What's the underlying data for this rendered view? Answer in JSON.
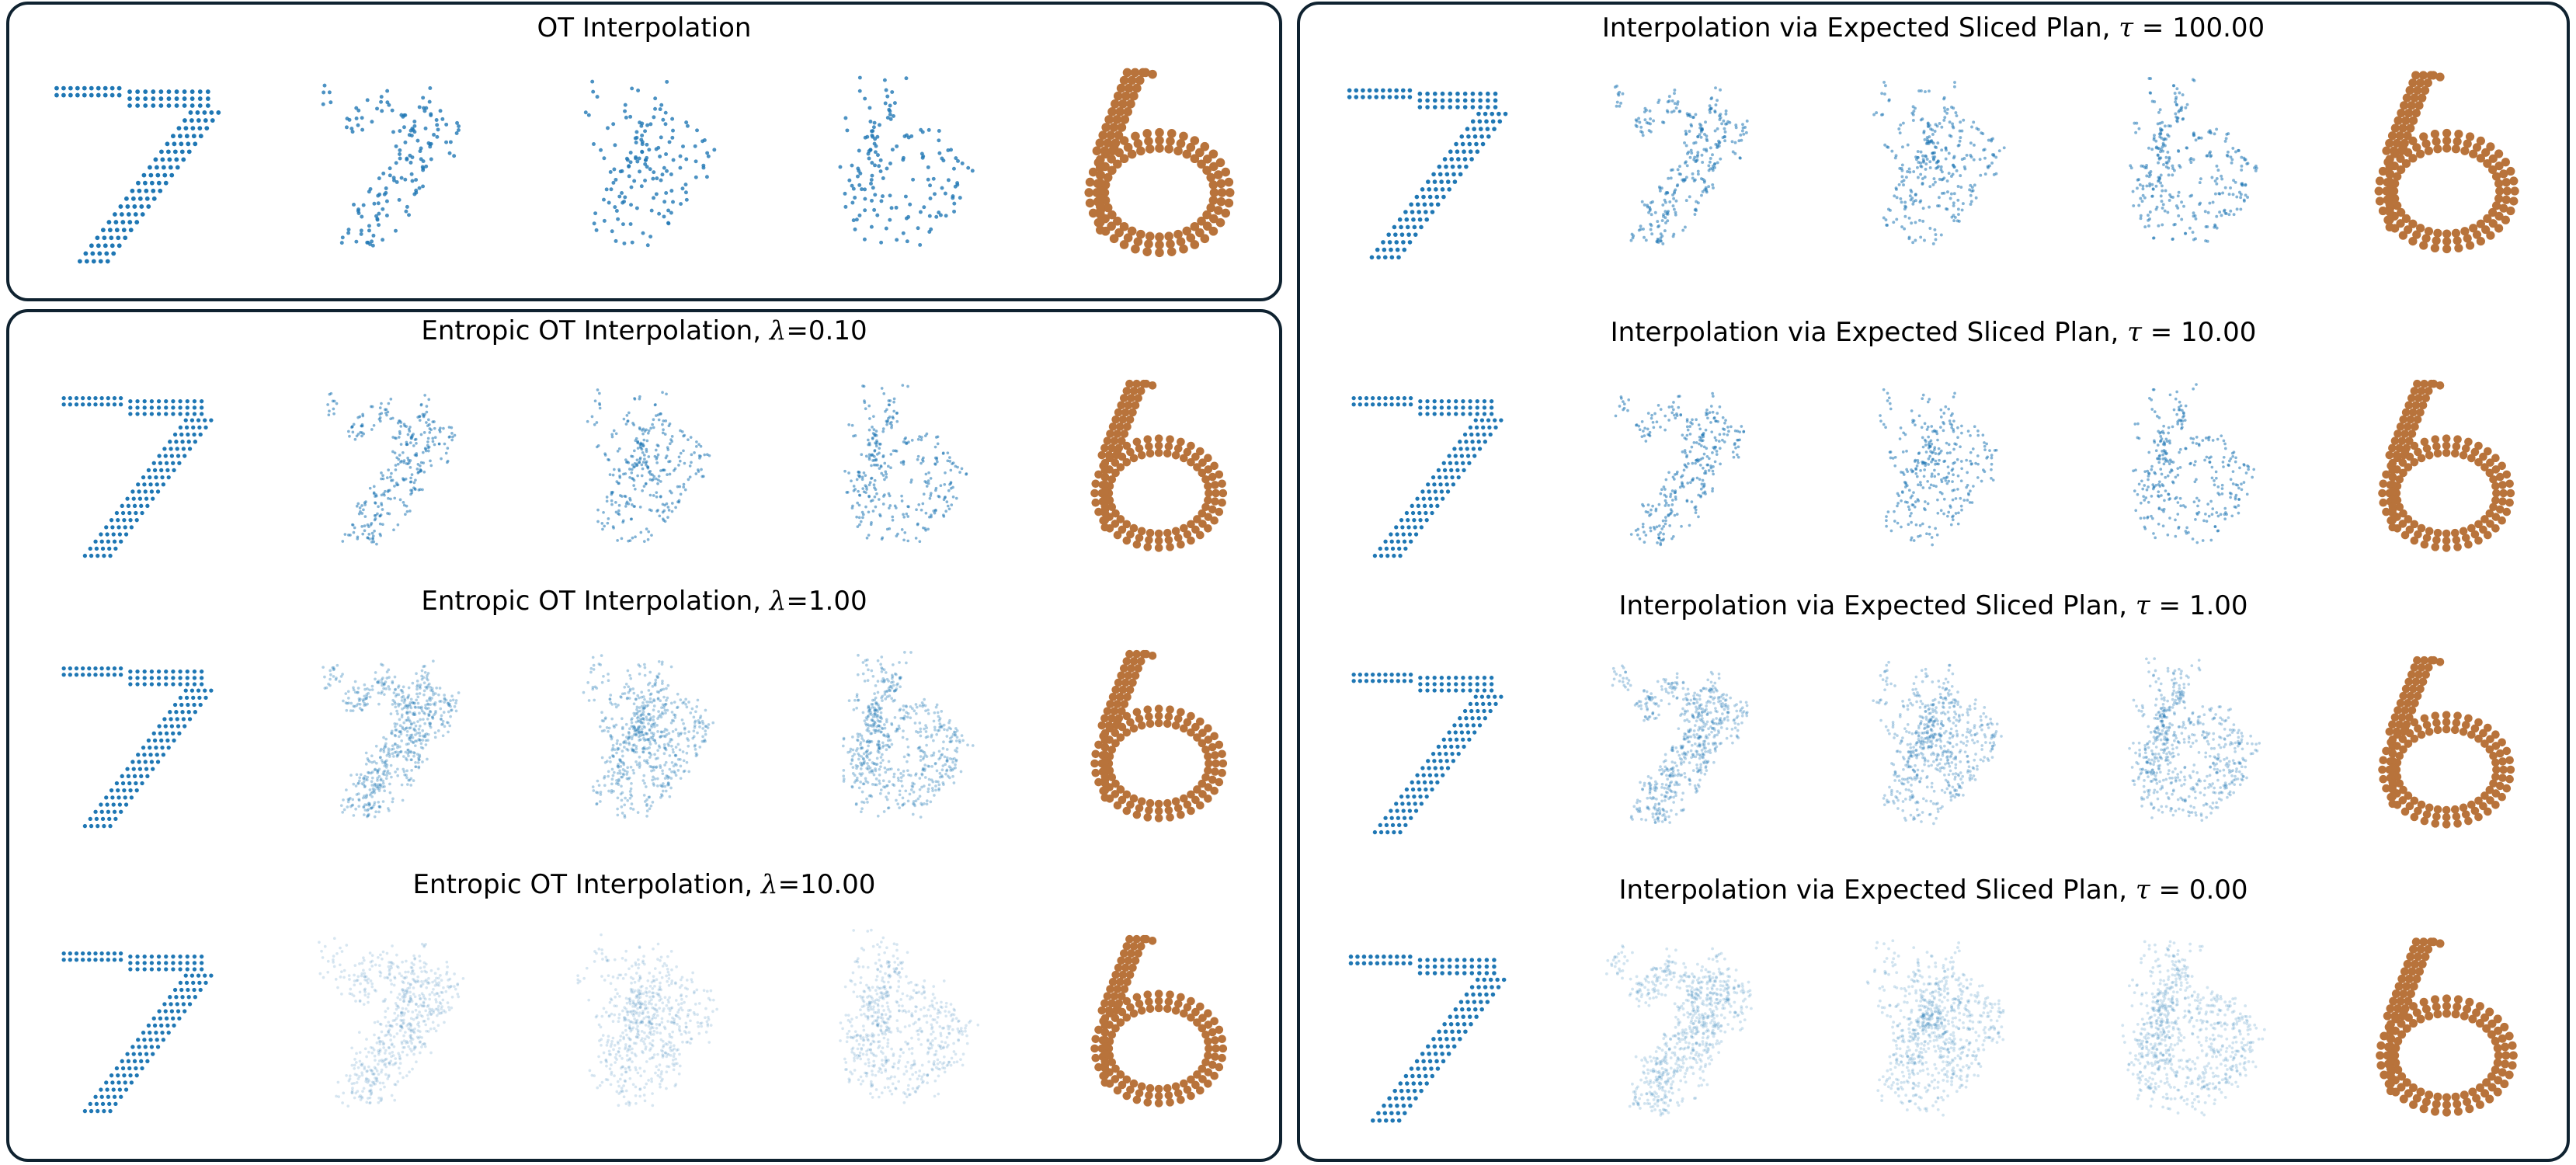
{
  "colors": {
    "source": "#1f77b4",
    "target": "#b8733b",
    "border": "#0f2230"
  },
  "panels": {
    "ot": {
      "rows": [
        {
          "title": "OT Interpolation",
          "method": "ot",
          "param": null
        }
      ]
    },
    "entropic": {
      "rows": [
        {
          "prefix": "Entropic OT Interpolation, ",
          "sym": "λ",
          "eq": "=",
          "value": "0.10",
          "method": "entropic",
          "param": 0.1
        },
        {
          "prefix": "Entropic OT Interpolation, ",
          "sym": "λ",
          "eq": "=",
          "value": "1.00",
          "method": "entropic",
          "param": 1.0
        },
        {
          "prefix": "Entropic OT Interpolation, ",
          "sym": "λ",
          "eq": "=",
          "value": "10.00",
          "method": "entropic",
          "param": 10.0
        }
      ]
    },
    "sliced": {
      "rows": [
        {
          "prefix": "Interpolation via Expected Sliced Plan, ",
          "sym": "τ",
          "eq": " = ",
          "value": "100.00",
          "method": "sliced",
          "param": 100
        },
        {
          "prefix": "Interpolation via Expected Sliced Plan, ",
          "sym": "τ",
          "eq": " = ",
          "value": "10.00",
          "method": "sliced",
          "param": 10
        },
        {
          "prefix": "Interpolation via Expected Sliced Plan, ",
          "sym": "τ",
          "eq": " = ",
          "value": "1.00",
          "method": "sliced",
          "param": 1
        },
        {
          "prefix": "Interpolation via Expected Sliced Plan, ",
          "sym": "τ",
          "eq": " = ",
          "value": "0.00",
          "method": "sliced",
          "param": 0
        }
      ]
    }
  },
  "interpolation_steps": [
    0,
    0.25,
    0.5,
    0.75,
    1
  ]
}
